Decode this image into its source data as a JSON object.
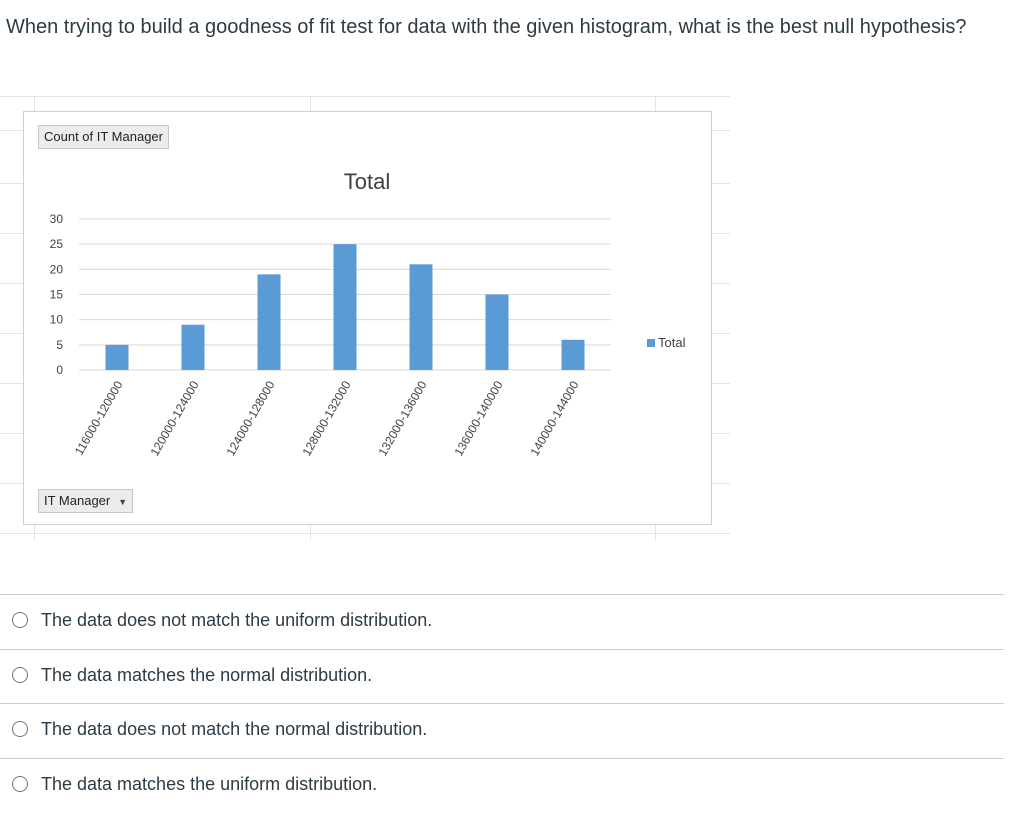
{
  "question": "When trying to build a goodness of fit test for data with the given histogram, what is the best null hypothesis?",
  "pivot": {
    "values_button": "Count of IT Manager",
    "row_field_button": "IT Manager"
  },
  "chart_data": {
    "type": "bar",
    "title": "Total",
    "categories": [
      "116000-120000",
      "120000-124000",
      "124000-128000",
      "128000-132000",
      "132000-136000",
      "136000-140000",
      "140000-144000"
    ],
    "series": [
      {
        "name": "Total",
        "values": [
          5,
          9,
          19,
          25,
          21,
          15,
          6
        ],
        "color": "#5b9bd5"
      }
    ],
    "xlabel": "",
    "ylabel": "",
    "ylim": [
      0,
      30
    ],
    "yticks": [
      0,
      5,
      10,
      15,
      20,
      25,
      30
    ],
    "grid": true,
    "legend": "right"
  },
  "answers": [
    {
      "label": "The data does not match the uniform distribution."
    },
    {
      "label": "The data matches the normal distribution."
    },
    {
      "label": "The data does not match the normal distribution."
    },
    {
      "label": "The data matches the uniform distribution."
    }
  ]
}
